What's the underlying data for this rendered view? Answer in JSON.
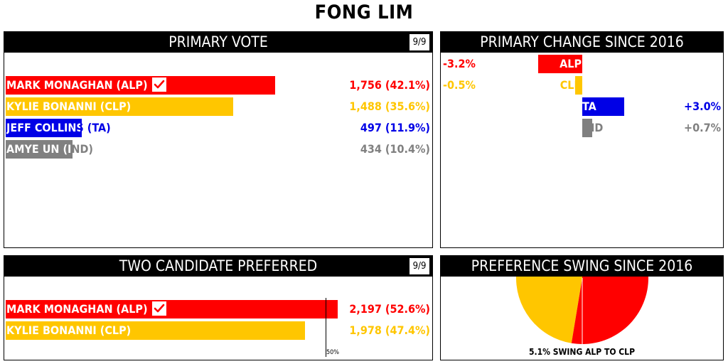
{
  "title": "FONG LIM",
  "colors": {
    "alp": "#ff0000",
    "clp": "#ffc600",
    "ta": "#0000e6",
    "ind": "#808080"
  },
  "primary_vote": {
    "header": "PRIMARY VOTE",
    "counted": "9/9",
    "rows": [
      {
        "name": "MARK MONAGHAN (ALP)",
        "votes": "1,756 (42.1%)",
        "pct": 42.1,
        "party": "alp",
        "elected": true
      },
      {
        "name": "KYLIE BONANNI (CLP)",
        "votes": "1,488 (35.6%)",
        "pct": 35.6,
        "party": "clp",
        "elected": false
      },
      {
        "name": "JEFF COLLINS (TA)",
        "votes": "497 (11.9%)",
        "pct": 11.9,
        "party": "ta",
        "elected": false
      },
      {
        "name": "AMYE UN (IND)",
        "votes": "434 (10.4%)",
        "pct": 10.4,
        "party": "ind",
        "elected": false
      }
    ]
  },
  "primary_change": {
    "header": "PRIMARY CHANGE SINCE 2016",
    "rows": [
      {
        "party": "ALP",
        "change": "-3.2%",
        "value": -3.2,
        "key": "alp"
      },
      {
        "party": "CLP",
        "change": "-0.5%",
        "value": -0.5,
        "key": "clp"
      },
      {
        "party": "TA",
        "change": "+3.0%",
        "value": 3.0,
        "key": "ta"
      },
      {
        "party": "IND",
        "change": "+0.7%",
        "value": 0.7,
        "key": "ind"
      }
    ]
  },
  "tcp": {
    "header": "TWO CANDIDATE PREFERRED",
    "counted": "9/9",
    "midline_label": "50%",
    "rows": [
      {
        "name": "MARK MONAGHAN (ALP)",
        "votes": "2,197 (52.6%)",
        "pct": 52.6,
        "party": "alp",
        "elected": true
      },
      {
        "name": "KYLIE BONANNI (CLP)",
        "votes": "1,978 (47.4%)",
        "pct": 47.4,
        "party": "clp",
        "elected": false
      }
    ]
  },
  "swing": {
    "header": "PREFERENCE SWING SINCE 2016",
    "caption": "5.1% SWING ALP TO CLP",
    "alp_pct": 52.6,
    "swing_pct": 5.1
  },
  "chart_data": [
    {
      "type": "bar",
      "title": "PRIMARY VOTE",
      "categories": [
        "MARK MONAGHAN (ALP)",
        "KYLIE BONANNI (CLP)",
        "JEFF COLLINS (TA)",
        "AMYE UN (IND)"
      ],
      "values": [
        42.1,
        35.6,
        11.9,
        10.4
      ],
      "votes": [
        1756,
        1488,
        497,
        434
      ]
    },
    {
      "type": "bar",
      "title": "PRIMARY CHANGE SINCE 2016",
      "categories": [
        "ALP",
        "CLP",
        "TA",
        "IND"
      ],
      "values": [
        -3.2,
        -0.5,
        3.0,
        0.7
      ]
    },
    {
      "type": "bar",
      "title": "TWO CANDIDATE PREFERRED",
      "categories": [
        "MARK MONAGHAN (ALP)",
        "KYLIE BONANNI (CLP)"
      ],
      "values": [
        52.6,
        47.4
      ],
      "votes": [
        2197,
        1978
      ]
    },
    {
      "type": "pie",
      "title": "PREFERENCE SWING SINCE 2016",
      "categories": [
        "ALP",
        "CLP"
      ],
      "values": [
        52.6,
        47.4
      ],
      "swing": 5.1
    }
  ]
}
